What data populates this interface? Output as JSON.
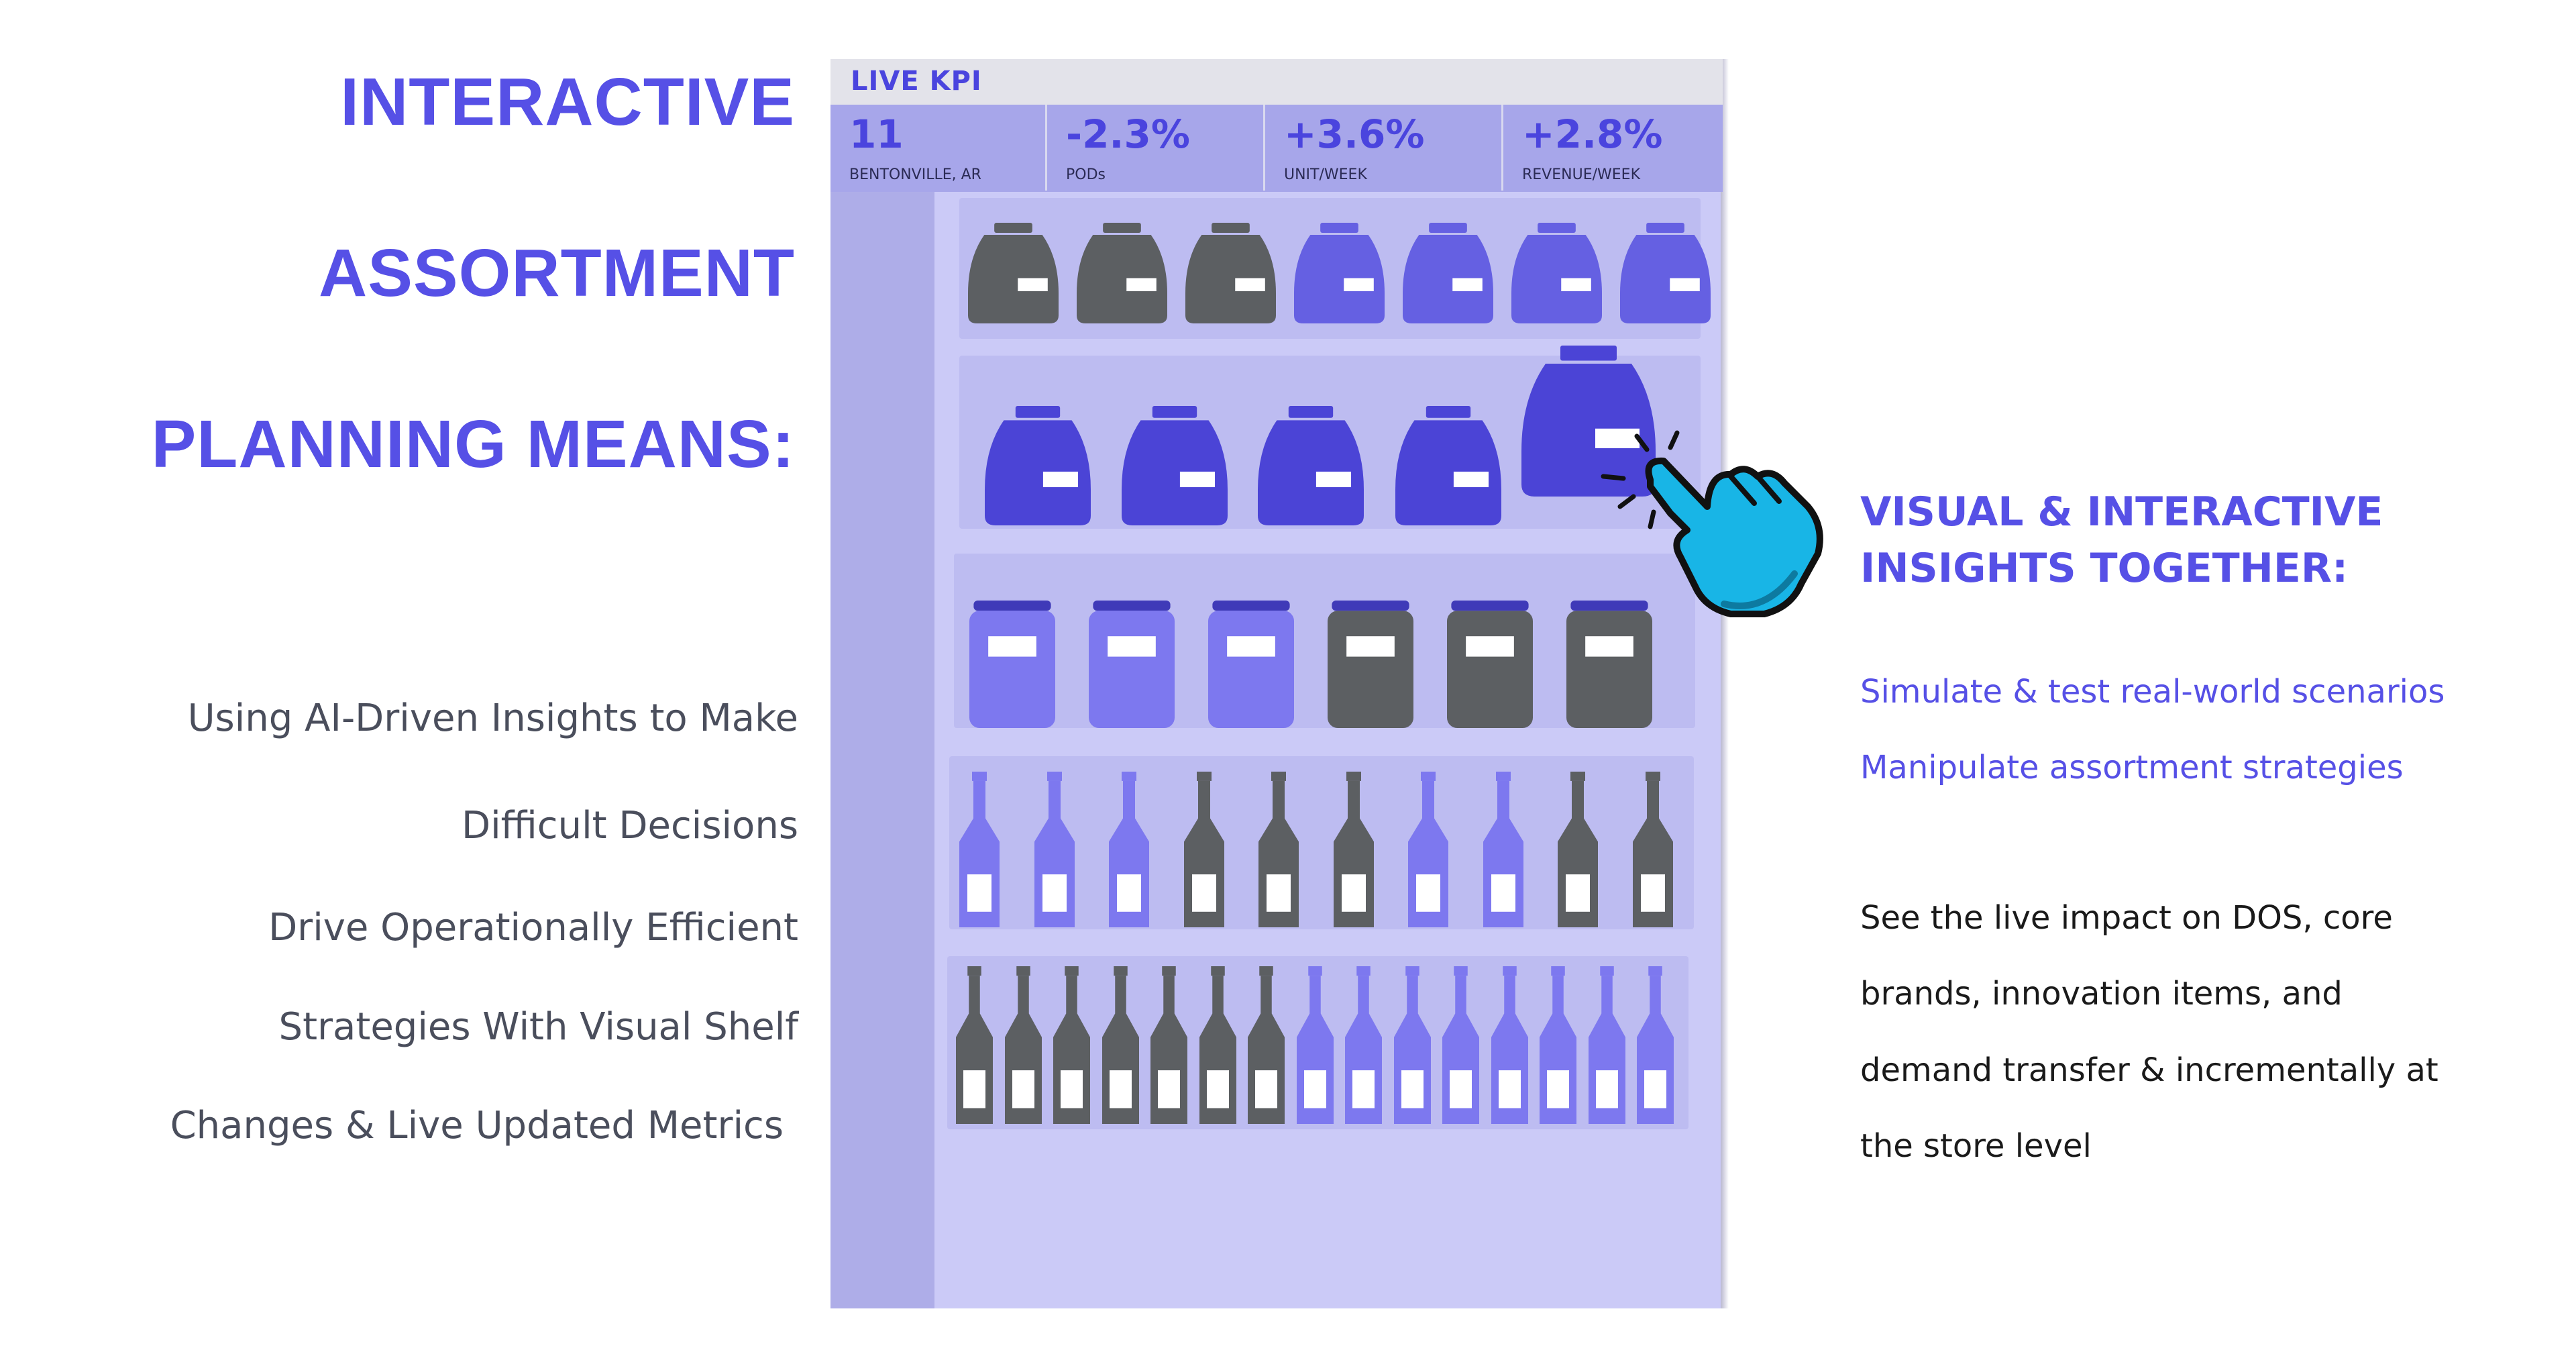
{
  "headline": [
    "INTERACTIVE",
    "ASSORTMENT",
    "PLANNING MEANS:"
  ],
  "left_body": [
    "Using AI-Driven Insights to Make",
    "Difficult Decisions",
    "Drive Operationally Efficient",
    "Strategies With Visual Shelf",
    "Changes & Live Updated Metrics"
  ],
  "kpi": {
    "title": "LIVE  KPI",
    "cells": [
      {
        "value": "11",
        "label": "BENTONVILLE, AR"
      },
      {
        "value": "-2.3%",
        "label": "PODs"
      },
      {
        "value": "+3.6%",
        "label": "UNIT/WEEK"
      },
      {
        "value": "+2.8%",
        "label": "REVENUE/WEEK"
      }
    ]
  },
  "right": {
    "heading": [
      "VISUAL & INTERACTIVE",
      "INSIGHTS TOGETHER:"
    ],
    "links": [
      "Simulate & test real-world scenarios",
      "Manipulate assortment strategies"
    ],
    "body": [
      "See the live impact on DOS, core",
      "brands,  innovation items, and",
      "demand transfer & incrementally at",
      "the store level"
    ]
  },
  "colors": {
    "accent": "#5650e6",
    "dark_product": "#5c5f62",
    "blue_product": "#4b44d6",
    "light_product": "#7d78ef",
    "pointer_hand": "#18b5e6"
  },
  "icons": {
    "pointer": "pointing-hand-icon"
  }
}
